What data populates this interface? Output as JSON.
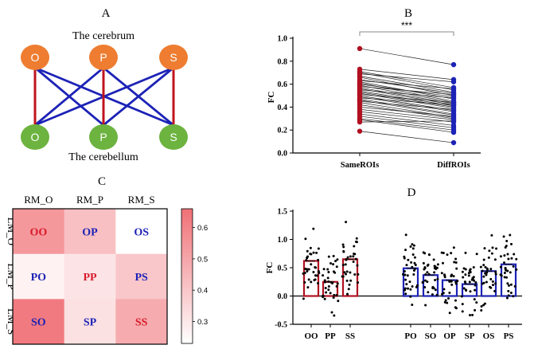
{
  "panels": {
    "a": {
      "letter": "A",
      "cerebrum_label": "The cerebrum",
      "cerebellum_label": "The cerebellum",
      "top_nodes": [
        "O",
        "P",
        "S"
      ],
      "bottom_nodes": [
        "O",
        "P",
        "S"
      ],
      "colors": {
        "cerebrum": "#ee7d31",
        "cerebellum": "#6cb33f",
        "same": "#c0141d",
        "diff": "#1c22b6"
      }
    },
    "b": {
      "letter": "B"
    },
    "c": {
      "letter": "C"
    },
    "d": {
      "letter": "D"
    }
  },
  "chart_data": [
    {
      "panel": "B",
      "type": "line",
      "x_categories": [
        "SameROIs",
        "DiffROIs"
      ],
      "ylabel": "FC",
      "ylim": [
        0.0,
        1.0
      ],
      "yticks": [
        "0.0",
        "0.2",
        "0.4",
        "0.6",
        "0.8",
        "1.0"
      ],
      "significance": "***",
      "colors": {
        "SameROIs": "#b01020",
        "DiffROIs": "#1c22b6"
      },
      "pairs": [
        [
          0.91,
          0.77
        ],
        [
          0.73,
          0.64
        ],
        [
          0.71,
          0.57
        ],
        [
          0.7,
          0.55
        ],
        [
          0.69,
          0.62
        ],
        [
          0.67,
          0.53
        ],
        [
          0.66,
          0.5
        ],
        [
          0.64,
          0.52
        ],
        [
          0.63,
          0.56
        ],
        [
          0.62,
          0.47
        ],
        [
          0.61,
          0.45
        ],
        [
          0.6,
          0.49
        ],
        [
          0.59,
          0.44
        ],
        [
          0.58,
          0.51
        ],
        [
          0.57,
          0.43
        ],
        [
          0.56,
          0.42
        ],
        [
          0.55,
          0.48
        ],
        [
          0.54,
          0.41
        ],
        [
          0.53,
          0.4
        ],
        [
          0.52,
          0.39
        ],
        [
          0.51,
          0.44
        ],
        [
          0.5,
          0.37
        ],
        [
          0.49,
          0.36
        ],
        [
          0.48,
          0.42
        ],
        [
          0.47,
          0.34
        ],
        [
          0.46,
          0.33
        ],
        [
          0.45,
          0.38
        ],
        [
          0.44,
          0.31
        ],
        [
          0.42,
          0.3
        ],
        [
          0.4,
          0.32
        ],
        [
          0.38,
          0.29
        ],
        [
          0.36,
          0.27
        ],
        [
          0.34,
          0.24
        ],
        [
          0.32,
          0.22
        ],
        [
          0.3,
          0.2
        ],
        [
          0.29,
          0.18
        ],
        [
          0.27,
          0.28
        ],
        [
          0.19,
          0.09
        ]
      ]
    },
    {
      "panel": "C",
      "type": "heatmap",
      "col_labels": [
        "RM_O",
        "RM_P",
        "RM_S"
      ],
      "row_labels": [
        "LM_O",
        "LM_P",
        "LM_S"
      ],
      "cells": [
        [
          {
            "label": "OO",
            "value": 0.54,
            "color": "#d81a2a"
          },
          {
            "label": "OP",
            "value": 0.42,
            "color": "#1c22b6"
          },
          {
            "label": "OS",
            "value": 0.23,
            "color": "#1c22b6"
          }
        ],
        [
          {
            "label": "PO",
            "value": 0.27,
            "color": "#1c22b6"
          },
          {
            "label": "PP",
            "value": 0.31,
            "color": "#d81a2a"
          },
          {
            "label": "PS",
            "value": 0.4,
            "color": "#1c22b6"
          }
        ],
        [
          {
            "label": "SO",
            "value": 0.63,
            "color": "#1c22b6"
          },
          {
            "label": "SP",
            "value": 0.32,
            "color": "#1c22b6"
          },
          {
            "label": "SS",
            "value": 0.48,
            "color": "#d81a2a"
          }
        ]
      ],
      "colorbar": {
        "min": 0.23,
        "max": 0.66,
        "ticks": [
          "0.3",
          "0.4",
          "0.5",
          "0.6"
        ],
        "tick_values": [
          0.3,
          0.4,
          0.5,
          0.6
        ]
      }
    },
    {
      "panel": "D",
      "type": "bar",
      "ylabel": "FC",
      "ylim": [
        -0.5,
        1.5
      ],
      "yticks": [
        "-0.5",
        "0.0",
        "0.5",
        "1.0",
        "1.5"
      ],
      "categories": [
        "OO",
        "PP",
        "SS",
        "PO",
        "SO",
        "OP",
        "SP",
        "OS",
        "PS"
      ],
      "values": [
        0.62,
        0.25,
        0.65,
        0.49,
        0.37,
        0.28,
        0.21,
        0.44,
        0.56
      ],
      "bar_colors": [
        "#b01020",
        "#b01020",
        "#b01020",
        "#1c22b6",
        "#1c22b6",
        "#1c22b6",
        "#1c22b6",
        "#1c22b6",
        "#1c22b6"
      ]
    }
  ]
}
